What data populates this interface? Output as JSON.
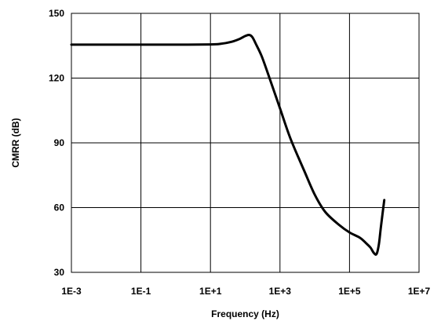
{
  "chart_data": {
    "type": "line",
    "title": "",
    "xlabel": "Frequency (Hz)",
    "ylabel": "CMRR (dB)",
    "x_scale": "log",
    "xlim": [
      0.001,
      10000000
    ],
    "ylim": [
      30,
      150
    ],
    "x_ticks": [
      0.001,
      0.1,
      10,
      1000,
      100000,
      10000000
    ],
    "x_tick_labels": [
      "1E-3",
      "1E-1",
      "1E+1",
      "1E+3",
      "1E+5",
      "1E+7"
    ],
    "y_ticks": [
      30,
      60,
      90,
      120,
      150
    ],
    "y_tick_labels": [
      "30",
      "60",
      "90",
      "120",
      "150"
    ],
    "grid": true,
    "legend": "none",
    "line_color": "#000000",
    "series": [
      {
        "x": [
          0.001,
          0.01,
          0.1,
          1,
          10,
          20,
          40,
          70,
          100,
          130,
          160,
          200,
          300,
          500,
          1000,
          2000,
          5000,
          10000,
          20000,
          50000,
          100000,
          200000,
          300000,
          400000,
          500000,
          600000,
          700000,
          800000,
          1000000
        ],
        "y": [
          135.5,
          135.5,
          135.5,
          135.5,
          135.6,
          135.9,
          136.8,
          138.2,
          139.5,
          140,
          139,
          136,
          130,
          120,
          106,
          92,
          77,
          66,
          58,
          52,
          48.5,
          46,
          43.5,
          41.5,
          39,
          38.5,
          43,
          51,
          63.5
        ]
      }
    ]
  }
}
